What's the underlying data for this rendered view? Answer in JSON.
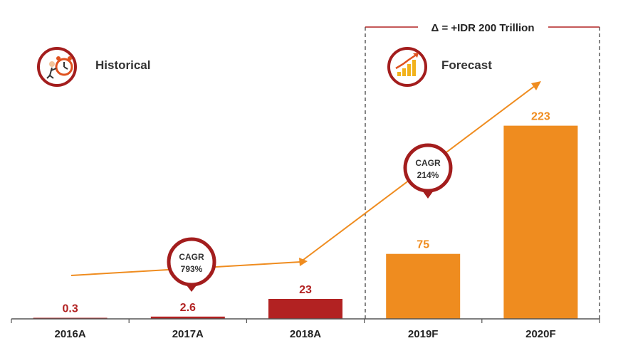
{
  "chart_data": {
    "type": "bar",
    "categories": [
      "2016A",
      "2017A",
      "2018A",
      "2019F",
      "2020F"
    ],
    "values": [
      0.3,
      2.6,
      23,
      75,
      223
    ],
    "value_labels": [
      "0.3",
      "2.6",
      "23",
      "75",
      "223"
    ],
    "ylim": [
      0,
      235
    ],
    "title": "",
    "xlabel": "",
    "ylabel": "",
    "series_groups": [
      {
        "name": "Historical",
        "categories": [
          "2016A",
          "2017A",
          "2018A"
        ]
      },
      {
        "name": "Forecast",
        "categories": [
          "2019F",
          "2020F"
        ]
      }
    ],
    "annotations": {
      "delta": "Δ = +IDR 200 Trillion",
      "cagr_historical": {
        "label": "CAGR",
        "value": "793%"
      },
      "cagr_forecast": {
        "label": "CAGR",
        "value": "214%"
      }
    }
  },
  "legend": {
    "historical_label": "Historical",
    "forecast_label": "Forecast"
  },
  "colors": {
    "historical": "#b22222",
    "forecast": "#ef8c1f",
    "axis": "#555555",
    "badge_border": "#a31d1d",
    "dashed": "#444444"
  },
  "icons": {
    "historical": "alarm-clock-running-icon",
    "forecast": "growth-chart-icon"
  }
}
